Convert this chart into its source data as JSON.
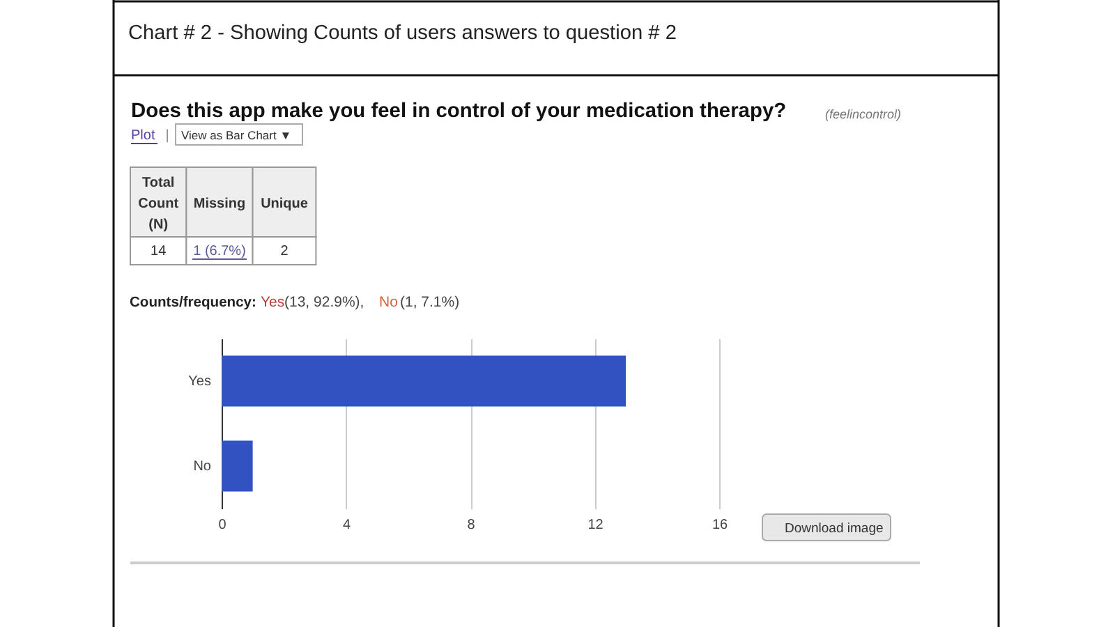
{
  "chart_data": {
    "type": "bar",
    "orientation": "horizontal",
    "title": "Chart # 2  - Showing Counts of users answers to question # 2",
    "subtitle": "Does this app make you feel in control of your medication therapy?",
    "categories": [
      "Yes",
      "No"
    ],
    "values": [
      13,
      1
    ],
    "color": "#3352c2",
    "xlim": [
      0,
      16
    ],
    "xticks": [
      0,
      4,
      8,
      12,
      16
    ],
    "grid": "x",
    "annotations": [
      "(feelincontrol)",
      "Plot",
      "|",
      "View as Bar Chart ▼",
      "Total Count (N)",
      "Missing",
      "Unique",
      "14",
      "1 (6.7%)",
      "2",
      "Counts/frequency:",
      "Yes",
      "(13, 92.9%),",
      "No",
      "(1, 7.1%)",
      "Download image"
    ]
  }
}
